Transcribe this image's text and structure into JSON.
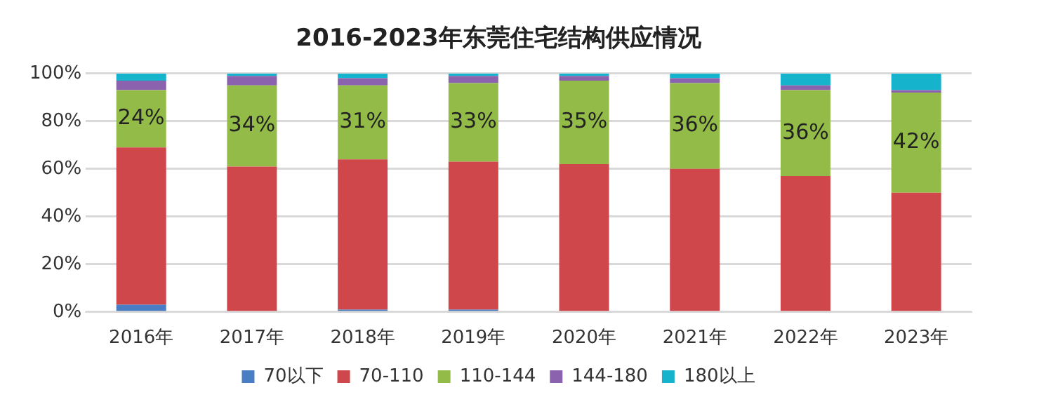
{
  "chart_data": {
    "type": "bar",
    "title": "2016-2023年东莞住宅结构供应情况",
    "stacked": true,
    "categories": [
      "2016年",
      "2017年",
      "2018年",
      "2019年",
      "2020年",
      "2021年",
      "2022年",
      "2023年"
    ],
    "series": [
      {
        "name": "70以下",
        "color": "#4a7ec4",
        "values": [
          3,
          0,
          1,
          1,
          0,
          0,
          0,
          0
        ]
      },
      {
        "name": "70-110",
        "color": "#d0474b",
        "values": [
          66,
          61,
          63,
          62,
          62,
          60,
          57,
          50
        ]
      },
      {
        "name": "110-144",
        "color": "#93bb48",
        "values": [
          24,
          34,
          31,
          33,
          35,
          36,
          36,
          42
        ],
        "value_labels": [
          "24%",
          "34%",
          "31%",
          "33%",
          "35%",
          "36%",
          "36%",
          "42%"
        ]
      },
      {
        "name": "144-180",
        "color": "#8a62ad",
        "values": [
          4,
          4,
          3,
          3,
          2,
          2,
          2,
          1
        ]
      },
      {
        "name": "180以上",
        "color": "#16b4cc",
        "values": [
          3,
          1,
          2,
          1,
          1,
          2,
          5,
          7
        ]
      }
    ],
    "ylim": [
      0,
      100
    ],
    "yticks": [
      {
        "value": 0,
        "label": "0%"
      },
      {
        "value": 20,
        "label": "20%"
      },
      {
        "value": 40,
        "label": "40%"
      },
      {
        "value": 60,
        "label": "60%"
      },
      {
        "value": 80,
        "label": "80%"
      },
      {
        "value": 100,
        "label": "100%"
      }
    ],
    "grid": "y",
    "legend": "bottom"
  }
}
